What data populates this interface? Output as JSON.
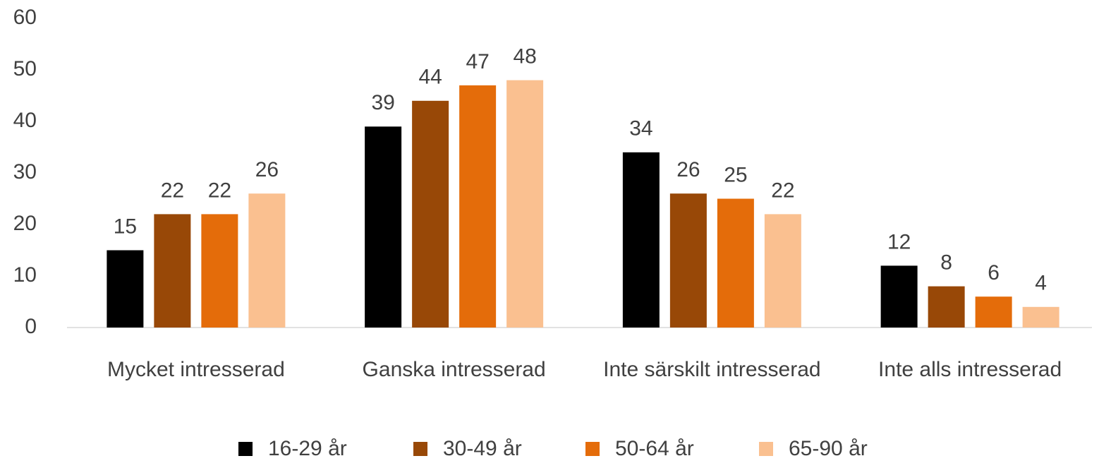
{
  "chart_data": {
    "type": "bar",
    "categories": [
      "Mycket intresserad",
      "Ganska intresserad",
      "Inte särskilt intresserad",
      "Inte alls intresserad"
    ],
    "series": [
      {
        "name": "16-29 år",
        "color": "#000000",
        "values": [
          15,
          39,
          34,
          12
        ]
      },
      {
        "name": "30-49 år",
        "color": "#984807",
        "values": [
          22,
          44,
          26,
          8
        ]
      },
      {
        "name": "50-64 år",
        "color": "#e46c0a",
        "values": [
          22,
          47,
          25,
          6
        ]
      },
      {
        "name": "65-90 år",
        "color": "#fac090",
        "values": [
          26,
          48,
          22,
          4
        ]
      }
    ],
    "ylim": [
      0,
      60
    ],
    "yticks": [
      0,
      10,
      20,
      30,
      40,
      50,
      60
    ],
    "grid": false,
    "legend": "bottom"
  }
}
